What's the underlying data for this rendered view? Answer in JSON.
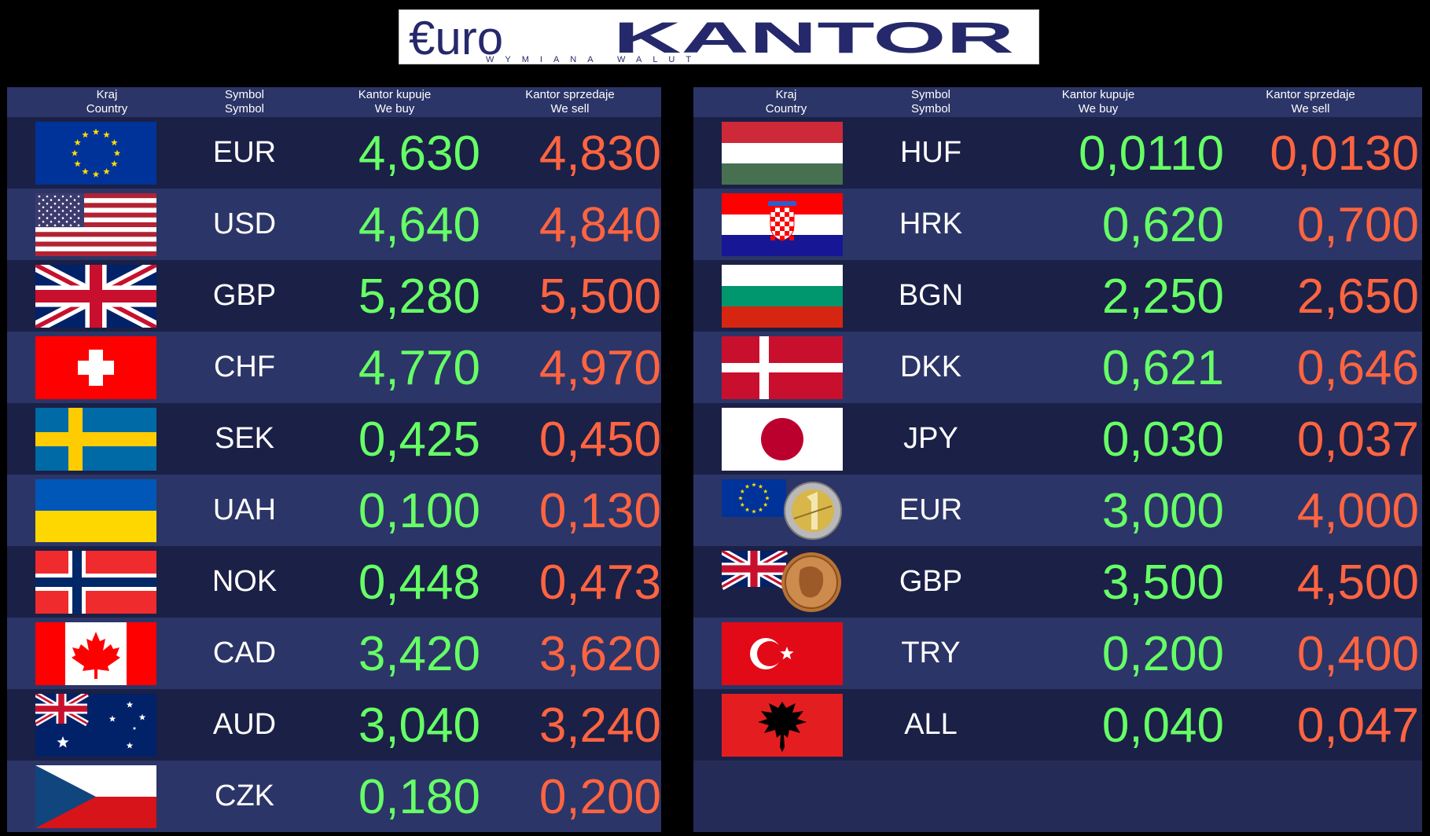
{
  "brand": {
    "euro_text": "€uro",
    "kantor_text": "KANTOR",
    "tagline": "WYMIANA WALUT"
  },
  "headers": {
    "country_pl": "Kraj",
    "country_en": "Country",
    "symbol_pl": "Symbol",
    "symbol_en": "Symbol",
    "buy_pl": "Kantor kupuje",
    "buy_en": "We buy",
    "sell_pl": "Kantor sprzedaje",
    "sell_en": "We sell"
  },
  "colors": {
    "buy": "#66ff66",
    "sell": "#ff6440",
    "row_dark": "#1b2046",
    "row_light": "#2c3567",
    "brand_navy": "#25296b"
  },
  "left_rows": [
    {
      "flag": "eu-flag-icon",
      "symbol": "EUR",
      "buy": "4,630",
      "sell": "4,830"
    },
    {
      "flag": "us-flag-icon",
      "symbol": "USD",
      "buy": "4,640",
      "sell": "4,840"
    },
    {
      "flag": "uk-flag-icon",
      "symbol": "GBP",
      "buy": "5,280",
      "sell": "5,500"
    },
    {
      "flag": "swiss-flag-icon",
      "symbol": "CHF",
      "buy": "4,770",
      "sell": "4,970"
    },
    {
      "flag": "sweden-flag-icon",
      "symbol": "SEK",
      "buy": "0,425",
      "sell": "0,450"
    },
    {
      "flag": "ukraine-flag-icon",
      "symbol": "UAH",
      "buy": "0,100",
      "sell": "0,130"
    },
    {
      "flag": "norway-flag-icon",
      "symbol": "NOK",
      "buy": "0,448",
      "sell": "0,473"
    },
    {
      "flag": "canada-flag-icon",
      "symbol": "CAD",
      "buy": "3,420",
      "sell": "3,620"
    },
    {
      "flag": "australia-flag-icon",
      "symbol": "AUD",
      "buy": "3,040",
      "sell": "3,240"
    },
    {
      "flag": "czech-flag-icon",
      "symbol": "CZK",
      "buy": "0,180",
      "sell": "0,200"
    }
  ],
  "right_rows": [
    {
      "flag": "hungary-flag-icon",
      "symbol": "HUF",
      "buy": "0,0110",
      "sell": "0,0130"
    },
    {
      "flag": "croatia-flag-icon",
      "symbol": "HRK",
      "buy": "0,620",
      "sell": "0,700"
    },
    {
      "flag": "bulgaria-flag-icon",
      "symbol": "BGN",
      "buy": "2,250",
      "sell": "2,650"
    },
    {
      "flag": "denmark-flag-icon",
      "symbol": "DKK",
      "buy": "0,621",
      "sell": "0,646"
    },
    {
      "flag": "japan-flag-icon",
      "symbol": "JPY",
      "buy": "0,030",
      "sell": "0,037"
    },
    {
      "flag": "eu-coin-flag-icon",
      "symbol": "EUR",
      "buy": "3,000",
      "sell": "4,000"
    },
    {
      "flag": "uk-coin-flag-icon",
      "symbol": "GBP",
      "buy": "3,500",
      "sell": "4,500"
    },
    {
      "flag": "turkey-flag-icon",
      "symbol": "TRY",
      "buy": "0,200",
      "sell": "0,400"
    },
    {
      "flag": "albania-flag-icon",
      "symbol": "ALL",
      "buy": "0,040",
      "sell": "0,047"
    }
  ]
}
